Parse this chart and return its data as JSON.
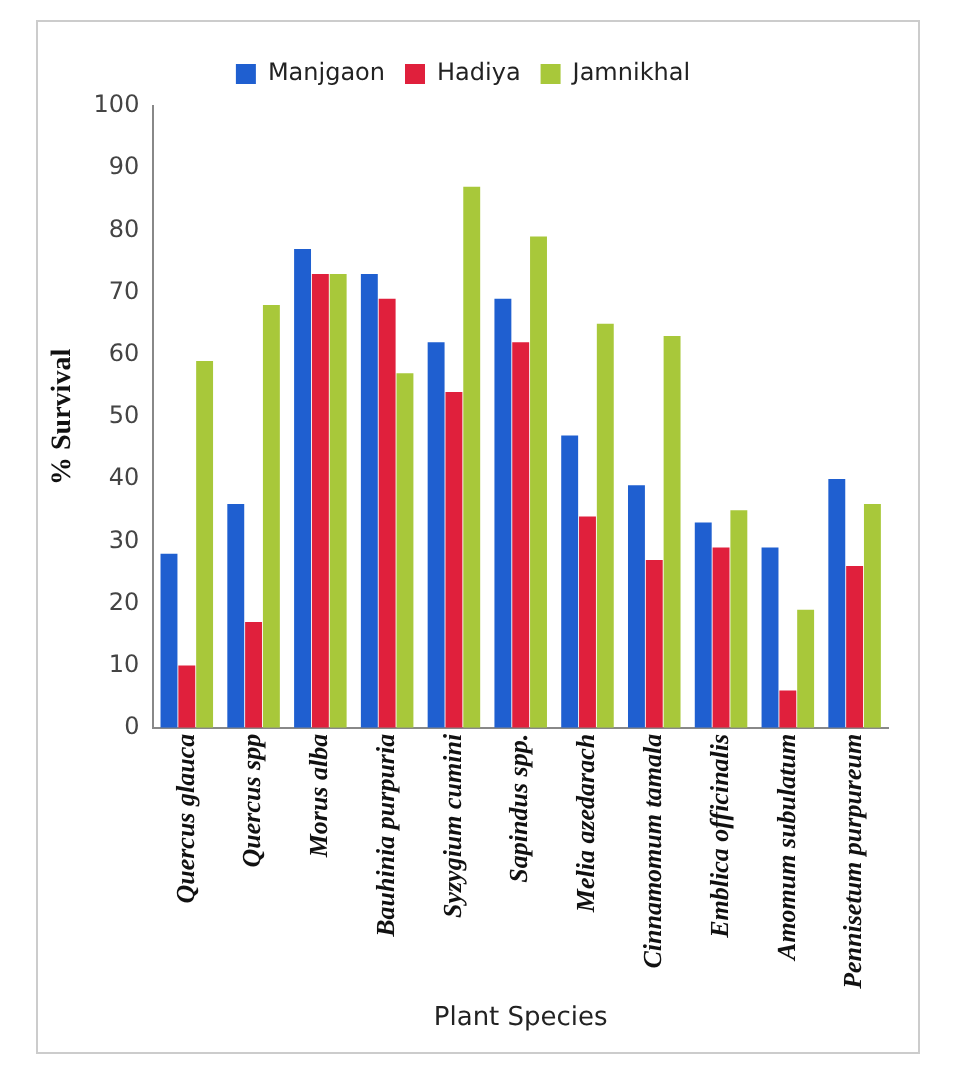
{
  "chart_data": {
    "type": "bar",
    "xlabel": "Plant Species",
    "ylabel": "% Survival",
    "categories": [
      "Quercus glauca",
      "Quercus spp",
      "Morus alba",
      "Bauhinia purpuria",
      "Syzygium cumini",
      "Sapindus spp.",
      "Melia azedarach",
      "Cinnamomum tamala",
      "Emblica officinalis",
      "Amomum subulatum",
      "Pennisetum purpureum"
    ],
    "series": [
      {
        "name": "Manjgaon",
        "color": "#1f5fd0",
        "values": [
          28,
          36,
          77,
          73,
          62,
          69,
          47,
          39,
          33,
          29,
          40
        ]
      },
      {
        "name": "Hadiya",
        "color": "#e0203c",
        "values": [
          10,
          17,
          73,
          69,
          54,
          62,
          34,
          27,
          29,
          6,
          26
        ]
      },
      {
        "name": "Jamnikhal",
        "color": "#a8c83a",
        "values": [
          59,
          68,
          73,
          57,
          87,
          79,
          65,
          63,
          35,
          19,
          36
        ]
      }
    ],
    "ylim": [
      0,
      100
    ],
    "yticks": [
      0,
      10,
      20,
      30,
      40,
      50,
      60,
      70,
      80,
      90,
      100
    ],
    "grid": false,
    "legend": "top"
  }
}
